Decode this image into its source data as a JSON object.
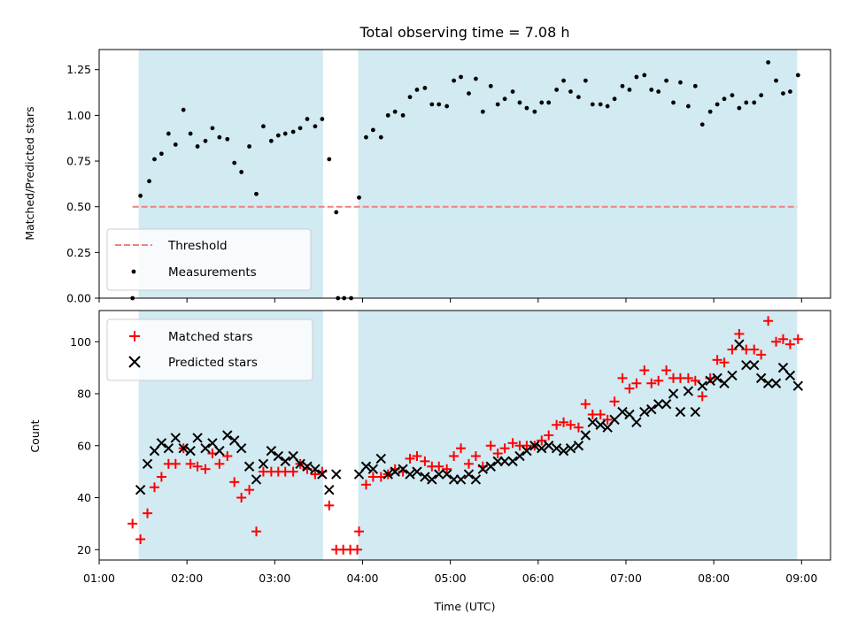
{
  "chart_data": [
    {
      "type": "scatter",
      "title": "Total observing time = 7.08 h",
      "xlabel": "",
      "ylabel": "Matched/Predicted stars",
      "xlim": [
        1.0,
        9.33
      ],
      "ylim": [
        0.0,
        1.36
      ],
      "yticks": [
        "0.00",
        "0.25",
        "0.50",
        "0.75",
        "1.00",
        "1.25"
      ],
      "shaded_intervals": [
        [
          1.45,
          3.55
        ],
        [
          3.95,
          8.95
        ]
      ],
      "legend": [
        "Threshold",
        "Measurements"
      ],
      "legend_position": "lower-left",
      "threshold": {
        "name": "Threshold",
        "value": 0.5,
        "x": [
          1.38,
          8.95
        ],
        "color": "#f08080"
      },
      "series": [
        {
          "name": "Measurements",
          "color": "#000000",
          "x": [
            1.38,
            1.47,
            1.57,
            1.63,
            1.71,
            1.79,
            1.87,
            1.96,
            2.04,
            2.12,
            2.21,
            2.29,
            2.37,
            2.46,
            2.54,
            2.62,
            2.71,
            2.79,
            2.87,
            2.96,
            3.04,
            3.12,
            3.21,
            3.29,
            3.37,
            3.46,
            3.54,
            3.62,
            3.7,
            3.72,
            3.79,
            3.87,
            3.96,
            4.04,
            4.12,
            4.21,
            4.29,
            4.37,
            4.46,
            4.54,
            4.62,
            4.71,
            4.79,
            4.87,
            4.96,
            5.04,
            5.12,
            5.21,
            5.29,
            5.37,
            5.46,
            5.54,
            5.62,
            5.71,
            5.79,
            5.87,
            5.96,
            6.04,
            6.12,
            6.21,
            6.29,
            6.37,
            6.46,
            6.54,
            6.62,
            6.71,
            6.79,
            6.87,
            6.96,
            7.04,
            7.12,
            7.21,
            7.29,
            7.37,
            7.46,
            7.54,
            7.62,
            7.71,
            7.79,
            7.87,
            7.96,
            8.04,
            8.12,
            8.21,
            8.29,
            8.37,
            8.46,
            8.54,
            8.62,
            8.71,
            8.79,
            8.87,
            8.96
          ],
          "y": [
            0.0,
            0.56,
            0.64,
            0.76,
            0.79,
            0.9,
            0.84,
            1.03,
            0.9,
            0.83,
            0.86,
            0.93,
            0.88,
            0.87,
            0.74,
            0.69,
            0.83,
            0.57,
            0.94,
            0.86,
            0.89,
            0.9,
            0.91,
            0.93,
            0.98,
            0.94,
            0.98,
            0.76,
            0.47,
            0.0,
            0.0,
            0.0,
            0.55,
            0.88,
            0.92,
            0.88,
            1.0,
            1.02,
            1.0,
            1.1,
            1.14,
            1.15,
            1.06,
            1.06,
            1.05,
            1.19,
            1.21,
            1.12,
            1.2,
            1.02,
            1.16,
            1.06,
            1.09,
            1.13,
            1.07,
            1.04,
            1.02,
            1.07,
            1.07,
            1.14,
            1.19,
            1.13,
            1.1,
            1.19,
            1.06,
            1.06,
            1.05,
            1.09,
            1.16,
            1.14,
            1.21,
            1.22,
            1.14,
            1.13,
            1.19,
            1.07,
            1.18,
            1.05,
            1.16,
            0.95,
            1.02,
            1.06,
            1.09,
            1.11,
            1.04,
            1.07,
            1.07,
            1.11,
            1.29,
            1.19,
            1.12,
            1.13,
            1.22
          ]
        }
      ]
    },
    {
      "type": "scatter",
      "title": "",
      "xlabel": "Time (UTC)",
      "ylabel": "Count",
      "xlim": [
        1.0,
        9.33
      ],
      "ylim": [
        16,
        112
      ],
      "yticks": [
        "20",
        "40",
        "60",
        "80",
        "100"
      ],
      "xticks": [
        "01:00",
        "02:00",
        "03:00",
        "04:00",
        "05:00",
        "06:00",
        "07:00",
        "08:00",
        "09:00"
      ],
      "shaded_intervals": [
        [
          1.45,
          3.55
        ],
        [
          3.95,
          8.95
        ]
      ],
      "legend": [
        "Matched stars",
        "Predicted stars"
      ],
      "legend_position": "upper-left",
      "series": [
        {
          "name": "Matched stars",
          "marker": "plus",
          "color": "#ff0000",
          "x": [
            1.38,
            1.47,
            1.55,
            1.63,
            1.71,
            1.79,
            1.87,
            1.96,
            2.04,
            2.12,
            2.21,
            2.29,
            2.37,
            2.46,
            2.54,
            2.62,
            2.71,
            2.79,
            2.87,
            2.96,
            3.04,
            3.12,
            3.21,
            3.29,
            3.37,
            3.46,
            3.54,
            3.62,
            3.7,
            3.78,
            3.86,
            3.94,
            3.96,
            4.04,
            4.12,
            4.21,
            4.29,
            4.37,
            4.46,
            4.54,
            4.62,
            4.71,
            4.79,
            4.87,
            4.96,
            5.04,
            5.12,
            5.21,
            5.29,
            5.37,
            5.46,
            5.54,
            5.62,
            5.71,
            5.79,
            5.87,
            5.96,
            6.04,
            6.12,
            6.21,
            6.29,
            6.37,
            6.46,
            6.54,
            6.62,
            6.71,
            6.79,
            6.87,
            6.96,
            7.04,
            7.12,
            7.21,
            7.29,
            7.37,
            7.46,
            7.54,
            7.62,
            7.71,
            7.79,
            7.87,
            7.96,
            8.04,
            8.12,
            8.21,
            8.29,
            8.37,
            8.46,
            8.54,
            8.62,
            8.71,
            8.79,
            8.87,
            8.96
          ],
          "y": [
            30,
            24,
            34,
            44,
            48,
            53,
            53,
            59,
            53,
            52,
            51,
            57,
            53,
            56,
            46,
            40,
            43,
            27,
            50,
            50,
            50,
            50,
            50,
            53,
            51,
            49,
            50,
            37,
            20,
            20,
            20,
            20,
            27,
            45,
            48,
            48,
            49,
            51,
            50,
            55,
            56,
            54,
            52,
            52,
            51,
            56,
            59,
            53,
            56,
            52,
            60,
            57,
            59,
            61,
            60,
            60,
            60,
            62,
            64,
            68,
            69,
            68,
            67,
            76,
            72,
            72,
            70,
            77,
            86,
            82,
            84,
            89,
            84,
            85,
            89,
            86,
            86,
            86,
            85,
            79,
            86,
            93,
            92,
            97,
            103,
            97,
            97,
            95,
            108,
            100,
            101,
            99,
            101
          ]
        },
        {
          "name": "Predicted stars",
          "marker": "x",
          "color": "#000000",
          "x": [
            1.47,
            1.55,
            1.63,
            1.71,
            1.79,
            1.87,
            1.96,
            2.04,
            2.12,
            2.21,
            2.29,
            2.37,
            2.46,
            2.54,
            2.62,
            2.71,
            2.79,
            2.87,
            2.96,
            3.04,
            3.12,
            3.21,
            3.29,
            3.37,
            3.46,
            3.54,
            3.62,
            3.7,
            3.96,
            4.04,
            4.12,
            4.21,
            4.29,
            4.37,
            4.46,
            4.54,
            4.62,
            4.71,
            4.79,
            4.87,
            4.96,
            5.04,
            5.12,
            5.21,
            5.29,
            5.37,
            5.46,
            5.54,
            5.62,
            5.71,
            5.79,
            5.87,
            5.96,
            6.04,
            6.12,
            6.21,
            6.29,
            6.37,
            6.46,
            6.54,
            6.62,
            6.71,
            6.79,
            6.87,
            6.96,
            7.04,
            7.12,
            7.21,
            7.29,
            7.37,
            7.46,
            7.54,
            7.62,
            7.71,
            7.79,
            7.87,
            7.96,
            8.04,
            8.12,
            8.21,
            8.29,
            8.37,
            8.46,
            8.54,
            8.62,
            8.71,
            8.79,
            8.87,
            8.96
          ],
          "y": [
            43,
            53,
            58,
            61,
            59,
            63,
            59,
            58,
            63,
            59,
            61,
            58,
            64,
            62,
            59,
            52,
            47,
            53,
            58,
            56,
            54,
            56,
            53,
            52,
            51,
            49,
            43,
            49,
            49,
            52,
            51,
            55,
            49,
            50,
            51,
            49,
            50,
            48,
            47,
            49,
            49,
            47,
            47,
            49,
            47,
            51,
            52,
            54,
            54,
            54,
            56,
            58,
            60,
            59,
            60,
            59,
            58,
            59,
            60,
            64,
            69,
            68,
            67,
            70,
            73,
            72,
            69,
            73,
            74,
            76,
            76,
            80,
            73,
            81,
            73,
            83,
            85,
            86,
            84,
            87,
            99,
            91,
            91,
            86,
            84,
            84,
            90,
            87,
            83
          ]
        }
      ]
    }
  ]
}
